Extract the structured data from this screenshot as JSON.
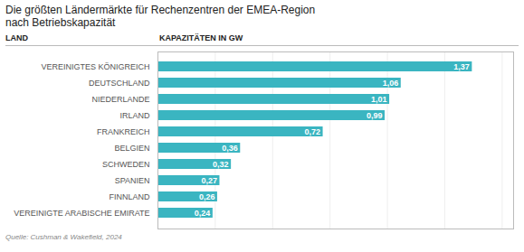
{
  "chart_data": {
    "type": "bar",
    "orientation": "horizontal",
    "title": "Die größten Ländermärkte für Rechenzentren der EMEA-Region",
    "subtitle": "nach Betriebskapazität",
    "y_label": "LAND",
    "x_label": "KAPAZITÄTEN IN GW",
    "annotations": [
      "Quelle:  Cushman & Wakefield, 2024"
    ],
    "categories": [
      "VEREINIGTES KÖNIGREICH",
      "DEUTSCHLAND",
      "NIEDERLANDE",
      "IRLAND",
      "FRANKREICH",
      "BELGIEN",
      "SCHWEDEN",
      "SPANIEN",
      "FINNLAND",
      "VEREINIGTE ARABISCHE EMIRATE"
    ],
    "values": [
      1.37,
      1.06,
      1.01,
      0.99,
      0.72,
      0.36,
      0.32,
      0.27,
      0.26,
      0.24
    ],
    "value_labels": [
      "1,37",
      "1,06",
      "1,01",
      "0,99",
      "0,72",
      "0,36",
      "0,32",
      "0,27",
      "0,26",
      "0,24"
    ],
    "data_labels": true,
    "color": "#3ab5c1",
    "xlim": [
      0,
      1.55
    ],
    "xticks": [
      0.25,
      0.5,
      0.75,
      1.0,
      1.25,
      1.5
    ],
    "grid": true,
    "tick_labels": "y"
  }
}
